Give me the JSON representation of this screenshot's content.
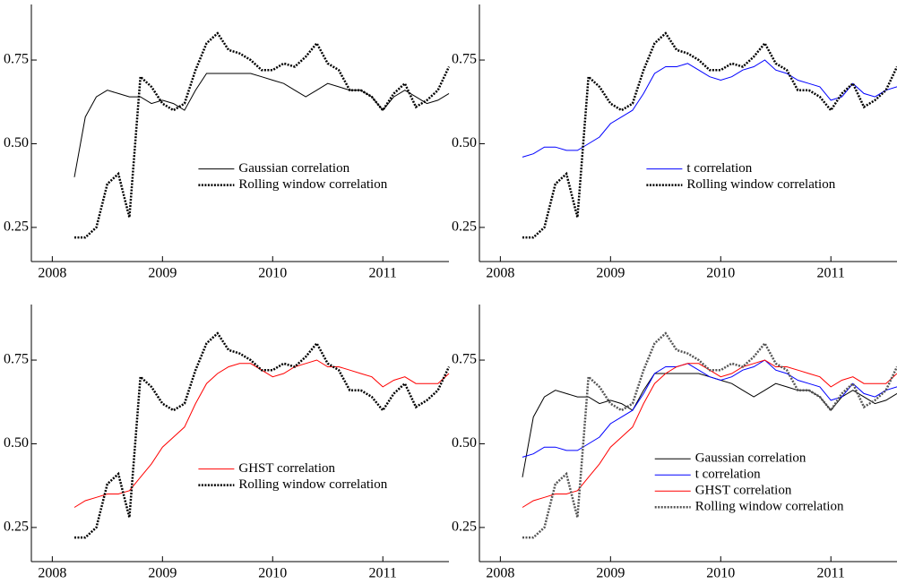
{
  "chart_data": [
    {
      "type": "line",
      "x": [
        2008.2,
        2008.3,
        2008.4,
        2008.5,
        2008.6,
        2008.7,
        2008.8,
        2008.9,
        2009.0,
        2009.1,
        2009.2,
        2009.3,
        2009.4,
        2009.5,
        2009.6,
        2009.7,
        2009.8,
        2009.9,
        2010.0,
        2010.1,
        2010.2,
        2010.3,
        2010.4,
        2010.5,
        2010.6,
        2010.7,
        2010.8,
        2010.9,
        2011.0,
        2011.1,
        2011.2,
        2011.3,
        2011.4,
        2011.5,
        2011.6
      ],
      "series": [
        {
          "name": "Gaussian correlation",
          "color": "#000000",
          "style": "solid",
          "values": [
            0.4,
            0.58,
            0.64,
            0.66,
            0.65,
            0.64,
            0.64,
            0.62,
            0.63,
            0.62,
            0.6,
            0.66,
            0.71,
            0.71,
            0.71,
            0.71,
            0.71,
            0.7,
            0.69,
            0.68,
            0.66,
            0.64,
            0.66,
            0.68,
            0.67,
            0.66,
            0.66,
            0.64,
            0.6,
            0.64,
            0.66,
            0.64,
            0.62,
            0.63,
            0.65
          ]
        },
        {
          "name": "Rolling window correlation",
          "color": "#000000",
          "style": "dotted",
          "values": [
            0.22,
            0.22,
            0.25,
            0.38,
            0.41,
            0.28,
            0.7,
            0.67,
            0.62,
            0.6,
            0.62,
            0.72,
            0.8,
            0.83,
            0.78,
            0.77,
            0.75,
            0.72,
            0.72,
            0.74,
            0.73,
            0.76,
            0.8,
            0.74,
            0.72,
            0.66,
            0.66,
            0.64,
            0.6,
            0.65,
            0.68,
            0.61,
            0.63,
            0.66,
            0.73
          ]
        }
      ],
      "xlim": [
        2007.81,
        2011.6
      ],
      "xticks": [
        2008,
        2009,
        2010,
        2011
      ],
      "ylim": [
        0.148,
        0.916
      ],
      "yticks": [
        0.25,
        {
          "value": 0.5,
          "label": "0.50"
        },
        0.75
      ],
      "legend": "center"
    },
    {
      "type": "line",
      "x": [
        2008.2,
        2008.3,
        2008.4,
        2008.5,
        2008.6,
        2008.7,
        2008.8,
        2008.9,
        2009.0,
        2009.1,
        2009.2,
        2009.3,
        2009.4,
        2009.5,
        2009.6,
        2009.7,
        2009.8,
        2009.9,
        2010.0,
        2010.1,
        2010.2,
        2010.3,
        2010.4,
        2010.5,
        2010.6,
        2010.7,
        2010.8,
        2010.9,
        2011.0,
        2011.1,
        2011.2,
        2011.3,
        2011.4,
        2011.5,
        2011.6
      ],
      "series": [
        {
          "name": "t correlation",
          "color": "#0000ff",
          "style": "solid",
          "values": [
            0.46,
            0.47,
            0.49,
            0.49,
            0.48,
            0.48,
            0.5,
            0.52,
            0.56,
            0.58,
            0.6,
            0.65,
            0.71,
            0.73,
            0.73,
            0.74,
            0.72,
            0.7,
            0.69,
            0.7,
            0.72,
            0.73,
            0.75,
            0.72,
            0.71,
            0.69,
            0.68,
            0.67,
            0.63,
            0.64,
            0.68,
            0.65,
            0.64,
            0.66,
            0.67
          ]
        },
        {
          "name": "Rolling window correlation",
          "color": "#000000",
          "style": "dotted",
          "values": [
            0.22,
            0.22,
            0.25,
            0.38,
            0.41,
            0.28,
            0.7,
            0.67,
            0.62,
            0.6,
            0.62,
            0.72,
            0.8,
            0.83,
            0.78,
            0.77,
            0.75,
            0.72,
            0.72,
            0.74,
            0.73,
            0.76,
            0.8,
            0.74,
            0.72,
            0.66,
            0.66,
            0.64,
            0.6,
            0.65,
            0.68,
            0.61,
            0.63,
            0.66,
            0.73
          ]
        }
      ],
      "xlim": [
        2007.81,
        2011.6
      ],
      "xticks": [
        2008,
        2009,
        2010,
        2011
      ],
      "ylim": [
        0.148,
        0.916
      ],
      "yticks": [
        0.25,
        {
          "value": 0.5,
          "label": "0.50"
        },
        0.75
      ],
      "legend": "center"
    },
    {
      "type": "line",
      "x": [
        2008.2,
        2008.3,
        2008.4,
        2008.5,
        2008.6,
        2008.7,
        2008.8,
        2008.9,
        2009.0,
        2009.1,
        2009.2,
        2009.3,
        2009.4,
        2009.5,
        2009.6,
        2009.7,
        2009.8,
        2009.9,
        2010.0,
        2010.1,
        2010.2,
        2010.3,
        2010.4,
        2010.5,
        2010.6,
        2010.7,
        2010.8,
        2010.9,
        2011.0,
        2011.1,
        2011.2,
        2011.3,
        2011.4,
        2011.5,
        2011.6
      ],
      "series": [
        {
          "name": "GHST correlation",
          "color": "#ff0000",
          "style": "solid",
          "values": [
            0.31,
            0.33,
            0.34,
            0.35,
            0.35,
            0.36,
            0.4,
            0.44,
            0.49,
            0.52,
            0.55,
            0.62,
            0.68,
            0.71,
            0.73,
            0.74,
            0.74,
            0.72,
            0.7,
            0.71,
            0.73,
            0.74,
            0.75,
            0.73,
            0.73,
            0.72,
            0.71,
            0.7,
            0.67,
            0.69,
            0.7,
            0.68,
            0.68,
            0.68,
            0.71
          ]
        },
        {
          "name": "Rolling window correlation",
          "color": "#000000",
          "style": "dotted",
          "values": [
            0.22,
            0.22,
            0.25,
            0.38,
            0.41,
            0.28,
            0.7,
            0.67,
            0.62,
            0.6,
            0.62,
            0.72,
            0.8,
            0.83,
            0.78,
            0.77,
            0.75,
            0.72,
            0.72,
            0.74,
            0.73,
            0.76,
            0.8,
            0.74,
            0.72,
            0.66,
            0.66,
            0.64,
            0.6,
            0.65,
            0.68,
            0.61,
            0.63,
            0.66,
            0.73
          ]
        }
      ],
      "xlim": [
        2007.81,
        2011.6
      ],
      "xticks": [
        2008,
        2009,
        2010,
        2011
      ],
      "ylim": [
        0.148,
        0.916
      ],
      "yticks": [
        0.25,
        {
          "value": 0.5,
          "label": "0.50"
        },
        0.75
      ],
      "legend": "center"
    },
    {
      "type": "line",
      "x": [
        2008.2,
        2008.3,
        2008.4,
        2008.5,
        2008.6,
        2008.7,
        2008.8,
        2008.9,
        2009.0,
        2009.1,
        2009.2,
        2009.3,
        2009.4,
        2009.5,
        2009.6,
        2009.7,
        2009.8,
        2009.9,
        2010.0,
        2010.1,
        2010.2,
        2010.3,
        2010.4,
        2010.5,
        2010.6,
        2010.7,
        2010.8,
        2010.9,
        2011.0,
        2011.1,
        2011.2,
        2011.3,
        2011.4,
        2011.5,
        2011.6
      ],
      "series": [
        {
          "name": "Gaussian correlation",
          "color": "#000000",
          "style": "solid",
          "values": [
            0.4,
            0.58,
            0.64,
            0.66,
            0.65,
            0.64,
            0.64,
            0.62,
            0.63,
            0.62,
            0.6,
            0.66,
            0.71,
            0.71,
            0.71,
            0.71,
            0.71,
            0.7,
            0.69,
            0.68,
            0.66,
            0.64,
            0.66,
            0.68,
            0.67,
            0.66,
            0.66,
            0.64,
            0.6,
            0.64,
            0.66,
            0.64,
            0.62,
            0.63,
            0.65
          ]
        },
        {
          "name": "t correlation",
          "color": "#0000ff",
          "style": "solid",
          "values": [
            0.46,
            0.47,
            0.49,
            0.49,
            0.48,
            0.48,
            0.5,
            0.52,
            0.56,
            0.58,
            0.6,
            0.65,
            0.71,
            0.73,
            0.73,
            0.74,
            0.72,
            0.7,
            0.69,
            0.7,
            0.72,
            0.73,
            0.75,
            0.72,
            0.71,
            0.69,
            0.68,
            0.67,
            0.63,
            0.64,
            0.68,
            0.65,
            0.64,
            0.66,
            0.67
          ]
        },
        {
          "name": "GHST correlation",
          "color": "#ff0000",
          "style": "solid",
          "values": [
            0.31,
            0.33,
            0.34,
            0.35,
            0.35,
            0.36,
            0.4,
            0.44,
            0.49,
            0.52,
            0.55,
            0.62,
            0.68,
            0.71,
            0.73,
            0.74,
            0.74,
            0.72,
            0.7,
            0.71,
            0.73,
            0.74,
            0.75,
            0.73,
            0.73,
            0.72,
            0.71,
            0.7,
            0.67,
            0.69,
            0.7,
            0.68,
            0.68,
            0.68,
            0.71
          ]
        },
        {
          "name": "Rolling window correlation",
          "color": "#555555",
          "style": "dotted",
          "values": [
            0.22,
            0.22,
            0.25,
            0.38,
            0.41,
            0.28,
            0.7,
            0.67,
            0.62,
            0.6,
            0.62,
            0.72,
            0.8,
            0.83,
            0.78,
            0.77,
            0.75,
            0.72,
            0.72,
            0.74,
            0.73,
            0.76,
            0.8,
            0.74,
            0.72,
            0.66,
            0.66,
            0.64,
            0.6,
            0.65,
            0.68,
            0.61,
            0.63,
            0.66,
            0.73
          ]
        }
      ],
      "xlim": [
        2007.81,
        2011.6
      ],
      "xticks": [
        2008,
        2009,
        2010,
        2011
      ],
      "ylim": [
        0.148,
        0.916
      ],
      "yticks": [
        0.25,
        {
          "value": 0.5,
          "label": "0.50"
        },
        0.75
      ],
      "legend": "lower right"
    }
  ]
}
